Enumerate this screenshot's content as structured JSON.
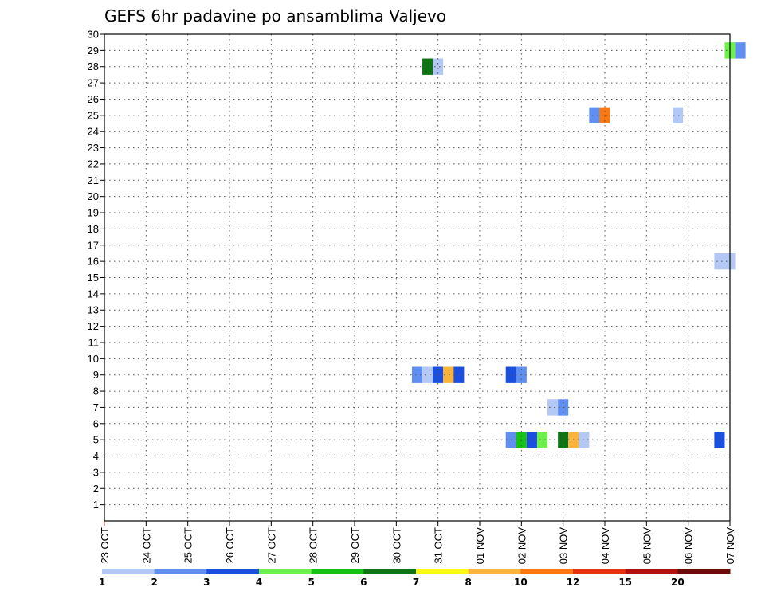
{
  "chart_data": {
    "type": "heatmap",
    "title": "GEFS 6hr padavine po ansamblima Valjevo",
    "xlabel": "",
    "ylabel": "",
    "x_unit": "6hr steps from 23 OCT 00Z",
    "x_range": [
      0,
      60
    ],
    "y_range": [
      0,
      30
    ],
    "x_ticks": [
      "23 OCT",
      "24 OCT",
      "25 OCT",
      "26 OCT",
      "27 OCT",
      "28 OCT",
      "29 OCT",
      "30 OCT",
      "31 OCT",
      "01 NOV",
      "02 NOV",
      "03 NOV",
      "04 NOV",
      "05 NOV",
      "06 NOV",
      "07 NOV"
    ],
    "y_ticks": [
      1,
      2,
      3,
      4,
      5,
      6,
      7,
      8,
      9,
      10,
      11,
      12,
      13,
      14,
      15,
      16,
      17,
      18,
      19,
      20,
      21,
      22,
      23,
      24,
      25,
      26,
      27,
      28,
      29,
      30
    ],
    "grid": true,
    "colorbar": {
      "labels": [
        "1",
        "2",
        "3",
        "4",
        "5",
        "6",
        "7",
        "8",
        "10",
        "12",
        "15",
        "20"
      ],
      "colors": [
        "#b4c8f5",
        "#5f8ff0",
        "#1a4fe0",
        "#6ef04a",
        "#16c214",
        "#0f7514",
        "#fafa14",
        "#fab43c",
        "#fa780f",
        "#e6320f",
        "#b40f0f",
        "#6e0a0a"
      ]
    },
    "cells": [
      {
        "x": 30.5,
        "w": 1,
        "y0": 27.5,
        "y1": 28.5,
        "c": 5
      },
      {
        "x": 31.5,
        "w": 1,
        "y0": 27.5,
        "y1": 28.5,
        "c": 0
      },
      {
        "x": 59.5,
        "w": 1,
        "y0": 28.5,
        "y1": 29.5,
        "c": 3
      },
      {
        "x": 60.5,
        "w": 1,
        "y0": 28.5,
        "y1": 29.5,
        "c": 1
      },
      {
        "x": 46.5,
        "w": 1,
        "y0": 24.5,
        "y1": 25.5,
        "c": 1
      },
      {
        "x": 47.5,
        "w": 1,
        "y0": 24.5,
        "y1": 25.5,
        "c": 8
      },
      {
        "x": 54.5,
        "w": 1,
        "y0": 24.5,
        "y1": 25.5,
        "c": 0
      },
      {
        "x": 58.5,
        "w": 2,
        "y0": 15.5,
        "y1": 16.5,
        "c": 0
      },
      {
        "x": 29.5,
        "w": 1,
        "y0": 8.5,
        "y1": 9.5,
        "c": 1
      },
      {
        "x": 30.5,
        "w": 1,
        "y0": 8.5,
        "y1": 9.5,
        "c": 0
      },
      {
        "x": 31.5,
        "w": 1,
        "y0": 8.5,
        "y1": 9.5,
        "c": 2
      },
      {
        "x": 32.5,
        "w": 1,
        "y0": 8.5,
        "y1": 9.5,
        "c": 7
      },
      {
        "x": 33.5,
        "w": 1,
        "y0": 8.5,
        "y1": 9.5,
        "c": 2
      },
      {
        "x": 38.5,
        "w": 1,
        "y0": 8.5,
        "y1": 9.5,
        "c": 2
      },
      {
        "x": 39.5,
        "w": 1,
        "y0": 8.5,
        "y1": 9.5,
        "c": 1
      },
      {
        "x": 42.5,
        "w": 1,
        "y0": 6.5,
        "y1": 7.5,
        "c": 0
      },
      {
        "x": 43.5,
        "w": 1,
        "y0": 6.5,
        "y1": 7.5,
        "c": 1
      },
      {
        "x": 38.5,
        "w": 1,
        "y0": 4.5,
        "y1": 5.5,
        "c": 1
      },
      {
        "x": 39.5,
        "w": 1,
        "y0": 4.5,
        "y1": 5.5,
        "c": 4
      },
      {
        "x": 40.5,
        "w": 1,
        "y0": 4.5,
        "y1": 5.5,
        "c": 2
      },
      {
        "x": 41.5,
        "w": 1,
        "y0": 4.5,
        "y1": 5.5,
        "c": 3
      },
      {
        "x": 43.5,
        "w": 1,
        "y0": 4.5,
        "y1": 5.5,
        "c": 5
      },
      {
        "x": 44.5,
        "w": 1,
        "y0": 4.5,
        "y1": 5.5,
        "c": 7
      },
      {
        "x": 45.5,
        "w": 1,
        "y0": 4.5,
        "y1": 5.5,
        "c": 0
      },
      {
        "x": 58.5,
        "w": 1,
        "y0": 4.5,
        "y1": 5.5,
        "c": 2
      }
    ]
  }
}
